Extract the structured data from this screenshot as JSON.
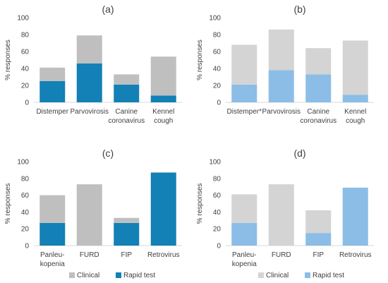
{
  "legend": {
    "left": {
      "clinical_label": "Clinical",
      "rapid_label": "Rapid test"
    },
    "right": {
      "clinical_label": "Clinical",
      "rapid_label": "Rapid test"
    }
  },
  "colors": {
    "clinical_dark_panels": "#bfbfbf",
    "rapid_dark_panels": "#1380b6",
    "clinical_light_panels": "#d4d4d4",
    "rapid_light_panels": "#8bbde6"
  },
  "chart_data": [
    {
      "panel": "a",
      "title": "(a)",
      "type": "bar",
      "stacked": true,
      "ylabel": "% responses",
      "ylim": [
        0,
        100
      ],
      "yticks": [
        0,
        20,
        40,
        60,
        80,
        100
      ],
      "categories": [
        [
          "Distemper"
        ],
        [
          "Parvovirosis"
        ],
        [
          "Canine",
          "coronavirus"
        ],
        [
          "Kennel",
          "cough"
        ]
      ],
      "series": [
        {
          "name": "Rapid test",
          "values": [
            25,
            46,
            21,
            8
          ]
        },
        {
          "name": "Clinical",
          "values": [
            16,
            33,
            12,
            46
          ]
        }
      ]
    },
    {
      "panel": "b",
      "title": "(b)",
      "type": "bar",
      "stacked": true,
      "ylabel": "% responses",
      "ylim": [
        0,
        100
      ],
      "yticks": [
        0,
        20,
        40,
        60,
        80,
        100
      ],
      "categories": [
        [
          "Distemper*"
        ],
        [
          "Parvovirosis"
        ],
        [
          "Canine",
          "coronavirus"
        ],
        [
          "Kennel",
          "cough"
        ]
      ],
      "series": [
        {
          "name": "Rapid test",
          "values": [
            21,
            38,
            33,
            9
          ]
        },
        {
          "name": "Clinical",
          "values": [
            47,
            48,
            31,
            64
          ]
        }
      ]
    },
    {
      "panel": "c",
      "title": "(c)",
      "type": "bar",
      "stacked": true,
      "ylabel": "% responses",
      "ylim": [
        0,
        100
      ],
      "yticks": [
        0,
        20,
        40,
        60,
        80,
        100
      ],
      "categories": [
        [
          "Panleu-",
          "kopenia"
        ],
        [
          "FURD"
        ],
        [
          "FIP"
        ],
        [
          "Retrovirus"
        ]
      ],
      "series": [
        {
          "name": "Rapid test",
          "values": [
            27,
            0,
            27,
            87
          ]
        },
        {
          "name": "Clinical",
          "values": [
            33,
            73,
            6,
            0
          ]
        }
      ]
    },
    {
      "panel": "d",
      "title": "(d)",
      "type": "bar",
      "stacked": true,
      "ylabel": "% responses",
      "ylim": [
        0,
        100
      ],
      "yticks": [
        0,
        20,
        40,
        60,
        80,
        100
      ],
      "categories": [
        [
          "Panleu-",
          "kopenia"
        ],
        [
          "FURD"
        ],
        [
          "FIP"
        ],
        [
          "Retrovirus"
        ]
      ],
      "series": [
        {
          "name": "Rapid test",
          "values": [
            27,
            0,
            15,
            69
          ]
        },
        {
          "name": "Clinical",
          "values": [
            34,
            73,
            27,
            0
          ]
        }
      ]
    }
  ]
}
